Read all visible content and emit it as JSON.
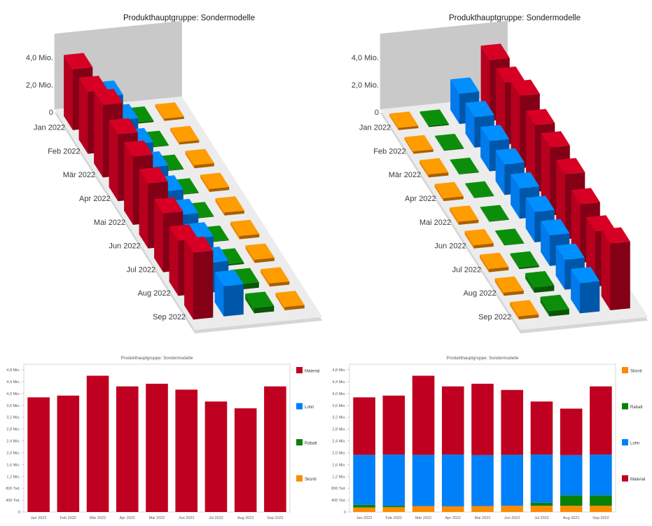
{
  "months": [
    "Jan 2022",
    "Feb 2022",
    "Mär 2022",
    "Apr 2022",
    "Mai 2022",
    "Jun 2022",
    "Jul 2022",
    "Aug 2022",
    "Sep 2022"
  ],
  "palette": {
    "material": "#C00020",
    "lohn": "#0080F8",
    "rabatt": "#0A8009",
    "skonti": "#FB8B00",
    "wall": "#C9C9C9",
    "floor": "#ECECEC",
    "floor_edge": "#D6D6D6",
    "axis_text": "#3a3a3a",
    "small_text": "#595959",
    "plot_border": "#D9D9D9",
    "tick_mark": "#C9C9C9"
  },
  "chart_data": [
    {
      "id": "top-left-3d",
      "type": "bar",
      "variant": "3d-perspective",
      "title": "Produkthauptgruppe: Sondermodelle",
      "categories": [
        "Jan 2022",
        "Feb 2022",
        "Mär 2022",
        "Apr 2022",
        "Mai 2022",
        "Jun 2022",
        "Jul 2022",
        "Aug 2022",
        "Sep 2022"
      ],
      "value_ticks": [
        {
          "label": "4,0 Mio.",
          "value": 4.0
        },
        {
          "label": "2,0 Mio.",
          "value": 2.0
        },
        {
          "label": "0",
          "value": 0
        }
      ],
      "ylim": [
        0,
        5.4
      ],
      "legend_position": "none",
      "series": [
        {
          "name": "Material",
          "color": "#C00020",
          "values": [
            3.87,
            3.93,
            4.6,
            4.24,
            4.33,
            4.13,
            3.73,
            3.5,
            4.24
          ]
        },
        {
          "name": "Lohn",
          "color": "#0080F8",
          "values": [
            1.93,
            1.94,
            1.92,
            1.94,
            1.92,
            1.93,
            1.95,
            1.9,
            1.92
          ]
        },
        {
          "name": "Rabatt",
          "color": "#0A8009",
          "values": [
            0.09,
            0.05,
            0.04,
            0.04,
            0.04,
            0.04,
            0.1,
            0.35,
            0.35
          ]
        },
        {
          "name": "Skonti",
          "color": "#FB8B00",
          "values": [
            0.15,
            0.16,
            0.2,
            0.19,
            0.2,
            0.21,
            0.21,
            0.21,
            0.21
          ]
        }
      ]
    },
    {
      "id": "top-right-3d",
      "type": "bar",
      "variant": "3d-perspective",
      "title": "Produkthauptgruppe: Sondermodelle",
      "categories": [
        "Jan 2022",
        "Feb 2022",
        "Mär 2022",
        "Apr 2022",
        "Mai 2022",
        "Jun 2022",
        "Jul 2022",
        "Aug 2022",
        "Sep 2022"
      ],
      "value_ticks": [
        {
          "label": "4,0 Mio.",
          "value": 4.0
        },
        {
          "label": "2,0 Mio.",
          "value": 2.0
        },
        {
          "label": "0",
          "value": 0
        }
      ],
      "ylim": [
        0,
        5.4
      ],
      "legend_position": "none",
      "series": [
        {
          "name": "Skonti",
          "color": "#FB8B00",
          "values": [
            0.15,
            0.16,
            0.2,
            0.19,
            0.2,
            0.21,
            0.21,
            0.21,
            0.21
          ]
        },
        {
          "name": "Rabatt",
          "color": "#0A8009",
          "values": [
            0.09,
            0.05,
            0.04,
            0.04,
            0.04,
            0.04,
            0.1,
            0.35,
            0.35
          ]
        },
        {
          "name": "Lohn",
          "color": "#0080F8",
          "values": [
            1.93,
            1.94,
            1.92,
            1.94,
            1.92,
            1.93,
            1.95,
            1.9,
            1.92
          ]
        },
        {
          "name": "Material",
          "color": "#C00020",
          "values": [
            3.87,
            3.93,
            4.6,
            4.24,
            4.33,
            4.13,
            3.73,
            3.5,
            4.24
          ]
        }
      ]
    },
    {
      "id": "bottom-left-2d",
      "type": "bar",
      "variant": "flat",
      "stacked": false,
      "title": "Produkthauptgruppe: Sondermodelle",
      "categories": [
        "Jan 2022",
        "Feb 2022",
        "Mär 2022",
        "Apr 2022",
        "Mai 2022",
        "Jun 2022",
        "Jul 2022",
        "Aug 2022",
        "Sep 2022"
      ],
      "xlabel": "",
      "ylabel": "",
      "ylim": [
        0,
        4.8
      ],
      "grid": false,
      "y_ticks": [
        {
          "label": "4,8 Mio.",
          "value": 4.8
        },
        {
          "label": "4,4 Mio.",
          "value": 4.4
        },
        {
          "label": "4,0 Mio.",
          "value": 4.0
        },
        {
          "label": "3,6 Mio.",
          "value": 3.6
        },
        {
          "label": "3,2 Mio.",
          "value": 3.2
        },
        {
          "label": "2,8 Mio.",
          "value": 2.8
        },
        {
          "label": "2,4 Mio.",
          "value": 2.4
        },
        {
          "label": "2,0 Mio.",
          "value": 2.0
        },
        {
          "label": "1,6 Mio.",
          "value": 1.6
        },
        {
          "label": "1,2 Mio.",
          "value": 1.2
        },
        {
          "label": "800 Tsd.",
          "value": 0.8
        },
        {
          "label": "400 Tsd.",
          "value": 0.4
        },
        {
          "label": "0",
          "value": 0
        }
      ],
      "series": [
        {
          "name": "Material",
          "color": "#C00020",
          "values": [
            3.87,
            3.93,
            4.6,
            4.24,
            4.33,
            4.13,
            3.73,
            3.5,
            4.24
          ]
        }
      ],
      "legend_position": "right",
      "legend": [
        {
          "label": "Material",
          "color": "#C00020"
        },
        {
          "label": "Lohn",
          "color": "#0080F8"
        },
        {
          "label": "Rabatt",
          "color": "#0A8009"
        },
        {
          "label": "Skonti",
          "color": "#FB8B00"
        }
      ]
    },
    {
      "id": "bottom-right-2d",
      "type": "bar",
      "variant": "flat",
      "stacked": true,
      "title": "Produkthauptgruppe: Sondermodelle",
      "categories": [
        "Jan 2022",
        "Feb 2022",
        "Mär 2022",
        "Apr 2022",
        "Mai 2022",
        "Jun 2022",
        "Jul 2022",
        "Aug 2022",
        "Sep 2022"
      ],
      "xlabel": "",
      "ylabel": "",
      "ylim": [
        0,
        4.8
      ],
      "grid": false,
      "y_ticks": [
        {
          "label": "4,8 Mio.",
          "value": 4.8
        },
        {
          "label": "4,4 Mio.",
          "value": 4.4
        },
        {
          "label": "4,0 Mio.",
          "value": 4.0
        },
        {
          "label": "3,6 Mio.",
          "value": 3.6
        },
        {
          "label": "3,2 Mio.",
          "value": 3.2
        },
        {
          "label": "2,8 Mio.",
          "value": 2.8
        },
        {
          "label": "2,4 Mio.",
          "value": 2.4
        },
        {
          "label": "2,0 Mio.",
          "value": 2.0
        },
        {
          "label": "1,6 Mio.",
          "value": 1.6
        },
        {
          "label": "1,2 Mio.",
          "value": 1.2
        },
        {
          "label": "800 Tsd.",
          "value": 0.8
        },
        {
          "label": "400 Tsd.",
          "value": 0.4
        },
        {
          "label": "0",
          "value": 0
        }
      ],
      "series": [
        {
          "name": "Skonti",
          "color": "#FB8B00",
          "values": [
            0.15,
            0.16,
            0.2,
            0.19,
            0.2,
            0.21,
            0.21,
            0.21,
            0.21
          ]
        },
        {
          "name": "Rabatt",
          "color": "#0A8009",
          "values": [
            0.09,
            0.05,
            0.0,
            0.0,
            0.0,
            0.0,
            0.1,
            0.35,
            0.35
          ]
        },
        {
          "name": "Lohn",
          "color": "#0080F8",
          "values": [
            1.69,
            1.73,
            1.73,
            1.75,
            1.72,
            1.72,
            1.63,
            1.36,
            1.38
          ]
        },
        {
          "name": "Material",
          "color": "#C00020",
          "values": [
            1.94,
            1.99,
            2.67,
            2.3,
            2.41,
            2.19,
            1.79,
            1.57,
            2.3
          ]
        }
      ],
      "legend_position": "right",
      "legend": [
        {
          "label": "Skonti",
          "color": "#FB8B00"
        },
        {
          "label": "Rabatt",
          "color": "#0A8009"
        },
        {
          "label": "Lohn",
          "color": "#0080F8"
        },
        {
          "label": "Material",
          "color": "#C00020"
        }
      ]
    }
  ]
}
